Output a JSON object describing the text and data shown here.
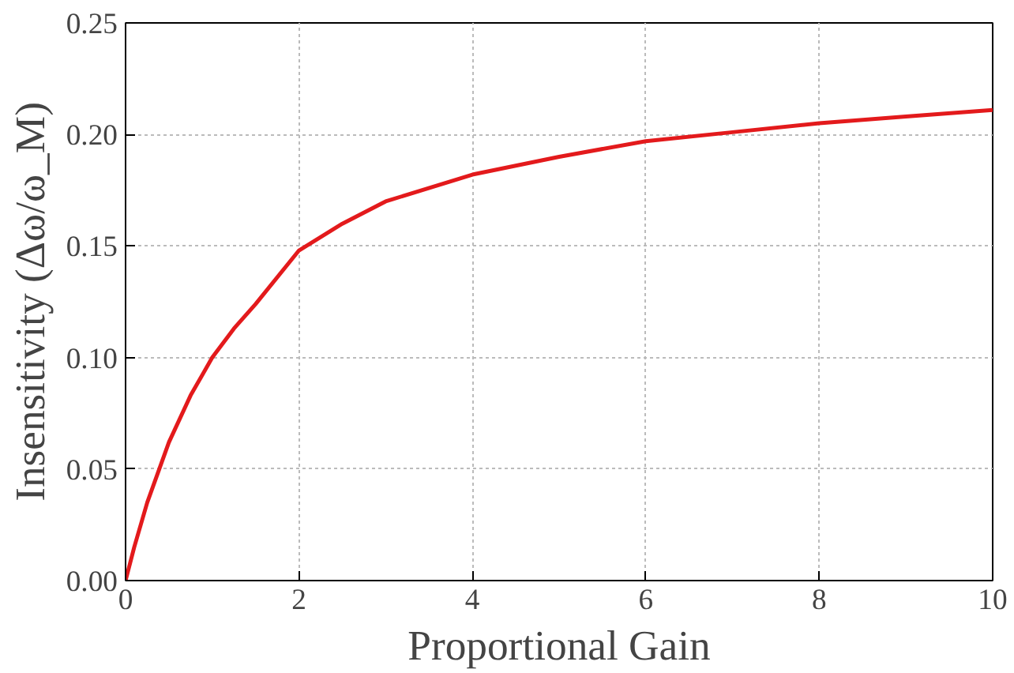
{
  "chart_data": {
    "type": "line",
    "xlabel": "Proportional Gain",
    "ylabel": "Insensitivity (Δω/ω_M)",
    "x": [
      0,
      0.1,
      0.25,
      0.5,
      0.75,
      1,
      1.25,
      1.5,
      2,
      2.5,
      3,
      4,
      5,
      6,
      7,
      8,
      9,
      10
    ],
    "series": [
      {
        "color": "#e31a1c",
        "values": [
          0,
          0.015,
          0.035,
          0.062,
          0.083,
          0.1,
          0.113,
          0.124,
          0.148,
          0.16,
          0.17,
          0.182,
          0.19,
          0.197,
          0.201,
          0.205,
          0.208,
          0.211
        ]
      }
    ],
    "xlim": [
      0,
      10
    ],
    "ylim": [
      0,
      0.25
    ],
    "xticks": [
      0,
      2,
      4,
      6,
      8,
      10
    ],
    "yticks": [
      {
        "value": 0,
        "label": "0.00"
      },
      {
        "value": 0.05,
        "label": "0.05"
      },
      {
        "value": 0.1,
        "label": "0.10"
      },
      {
        "value": 0.15,
        "label": "0.15"
      },
      {
        "value": 0.2,
        "label": "0.20"
      },
      {
        "value": 0.25,
        "label": "0.25"
      }
    ],
    "grid": true,
    "line_style": "solid",
    "marker": "none"
  }
}
